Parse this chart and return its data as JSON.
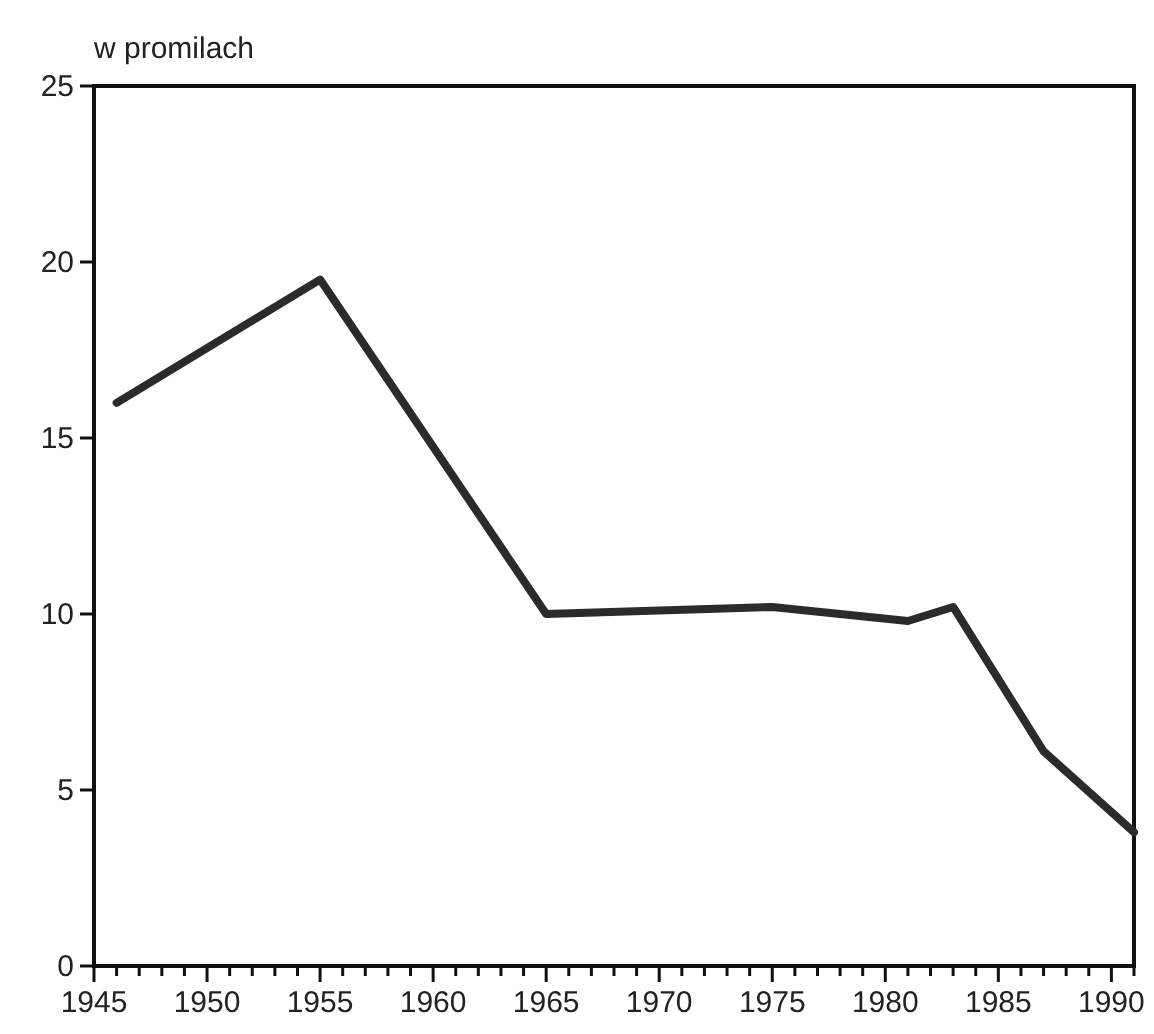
{
  "chart_data": {
    "type": "line",
    "ylabel": "w promilach",
    "x": [
      1946,
      1955,
      1965,
      1975,
      1981,
      1983,
      1987,
      1991
    ],
    "series": [
      {
        "color": "#2b2b2b",
        "values": [
          16,
          19.5,
          10,
          10.2,
          9.8,
          10.2,
          6.1,
          3.8
        ]
      }
    ],
    "xlim": [
      1945,
      1991
    ],
    "xticks": [
      1945,
      {
        "value": 1946,
        "label": null
      },
      {
        "value": 1947,
        "label": null
      },
      {
        "value": 1948,
        "label": null
      },
      {
        "value": 1949,
        "label": null
      },
      1950,
      {
        "value": 1951,
        "label": null
      },
      {
        "value": 1952,
        "label": null
      },
      {
        "value": 1953,
        "label": null
      },
      {
        "value": 1954,
        "label": null
      },
      1955,
      {
        "value": 1956,
        "label": null
      },
      {
        "value": 1957,
        "label": null
      },
      {
        "value": 1958,
        "label": null
      },
      {
        "value": 1959,
        "label": null
      },
      1960,
      {
        "value": 1961,
        "label": null
      },
      {
        "value": 1962,
        "label": null
      },
      {
        "value": 1963,
        "label": null
      },
      {
        "value": 1964,
        "label": null
      },
      1965,
      {
        "value": 1966,
        "label": null
      },
      {
        "value": 1967,
        "label": null
      },
      {
        "value": 1968,
        "label": null
      },
      {
        "value": 1969,
        "label": null
      },
      1970,
      {
        "value": 1971,
        "label": null
      },
      {
        "value": 1972,
        "label": null
      },
      {
        "value": 1973,
        "label": null
      },
      {
        "value": 1974,
        "label": null
      },
      1975,
      {
        "value": 1976,
        "label": null
      },
      {
        "value": 1977,
        "label": null
      },
      {
        "value": 1978,
        "label": null
      },
      {
        "value": 1979,
        "label": null
      },
      1980,
      {
        "value": 1981,
        "label": null
      },
      {
        "value": 1982,
        "label": null
      },
      {
        "value": 1983,
        "label": null
      },
      {
        "value": 1984,
        "label": null
      },
      1985,
      {
        "value": 1986,
        "label": null
      },
      {
        "value": 1987,
        "label": null
      },
      {
        "value": 1988,
        "label": null
      },
      {
        "value": 1989,
        "label": null
      },
      1990,
      {
        "value": 1991,
        "label": null
      }
    ],
    "ylim": [
      0,
      25
    ],
    "yticks": [
      0,
      5,
      10,
      15,
      20,
      25
    ],
    "grid": false,
    "marker": "none",
    "line_style": "solid"
  }
}
